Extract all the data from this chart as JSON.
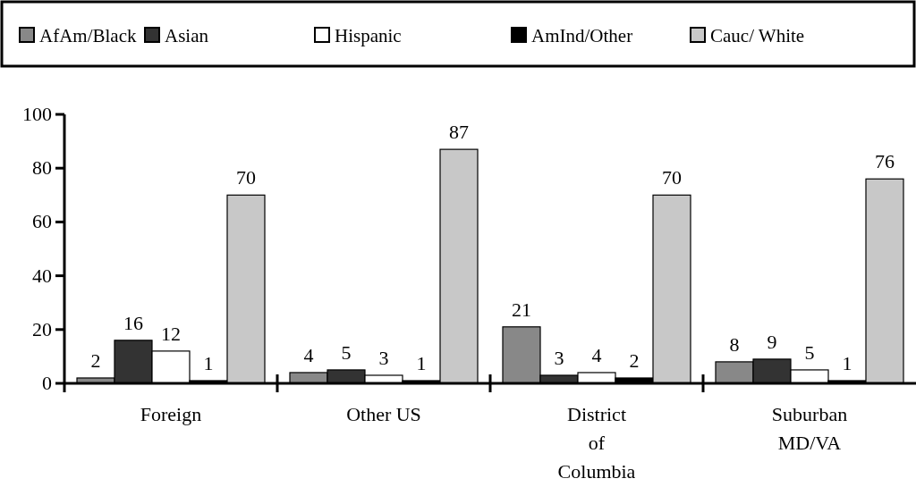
{
  "chart_data": {
    "type": "bar",
    "categories": [
      "Foreign",
      "Other US",
      "District\nof\nColumbia",
      "Suburban\nMD/VA"
    ],
    "series": [
      {
        "name": "AfAm/Black",
        "color": "#888888",
        "values": [
          2,
          4,
          21,
          8
        ]
      },
      {
        "name": "Asian",
        "color": "#333333",
        "values": [
          16,
          5,
          3,
          9
        ]
      },
      {
        "name": "Hispanic",
        "color": "#ffffff",
        "values": [
          12,
          3,
          4,
          5
        ]
      },
      {
        "name": "AmInd/Other",
        "color": "#000000",
        "values": [
          1,
          1,
          2,
          1
        ]
      },
      {
        "name": "Cauc/ White",
        "color": "#c8c8c8",
        "values": [
          70,
          87,
          70,
          76
        ]
      }
    ],
    "ylim": [
      0,
      100
    ],
    "yticks": [
      0,
      20,
      40,
      60,
      80,
      100
    ],
    "data_labels": true,
    "legend": "top",
    "grid": false
  }
}
